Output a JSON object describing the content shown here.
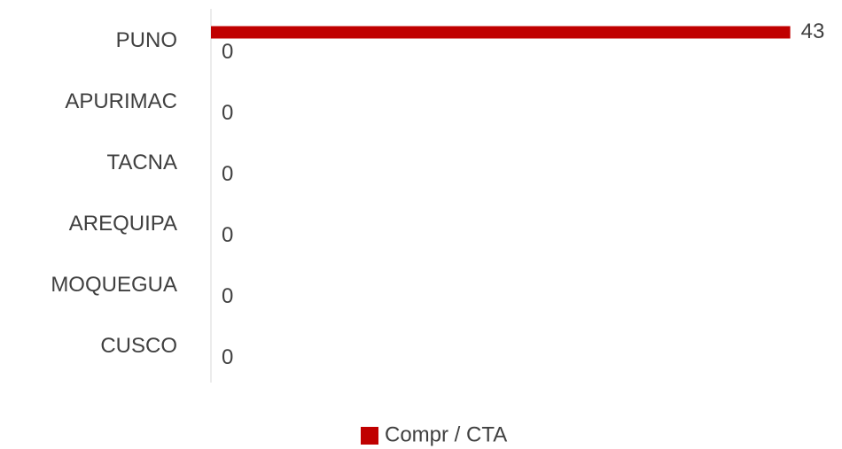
{
  "chart_data": {
    "type": "hbar",
    "categories": [
      "PUNO",
      "APURIMAC",
      "TACNA",
      "AREQUIPA",
      "MOQUEGUA",
      "CUSCO"
    ],
    "series": [
      {
        "name": "Compr / CTA",
        "color": "#c00000",
        "values": [
          43,
          null,
          null,
          null,
          null,
          null
        ]
      },
      {
        "color": "#ffffff",
        "values": [
          0,
          0,
          0,
          0,
          0,
          0
        ]
      }
    ],
    "xlim": [
      0,
      45
    ],
    "legend": "bottom"
  }
}
